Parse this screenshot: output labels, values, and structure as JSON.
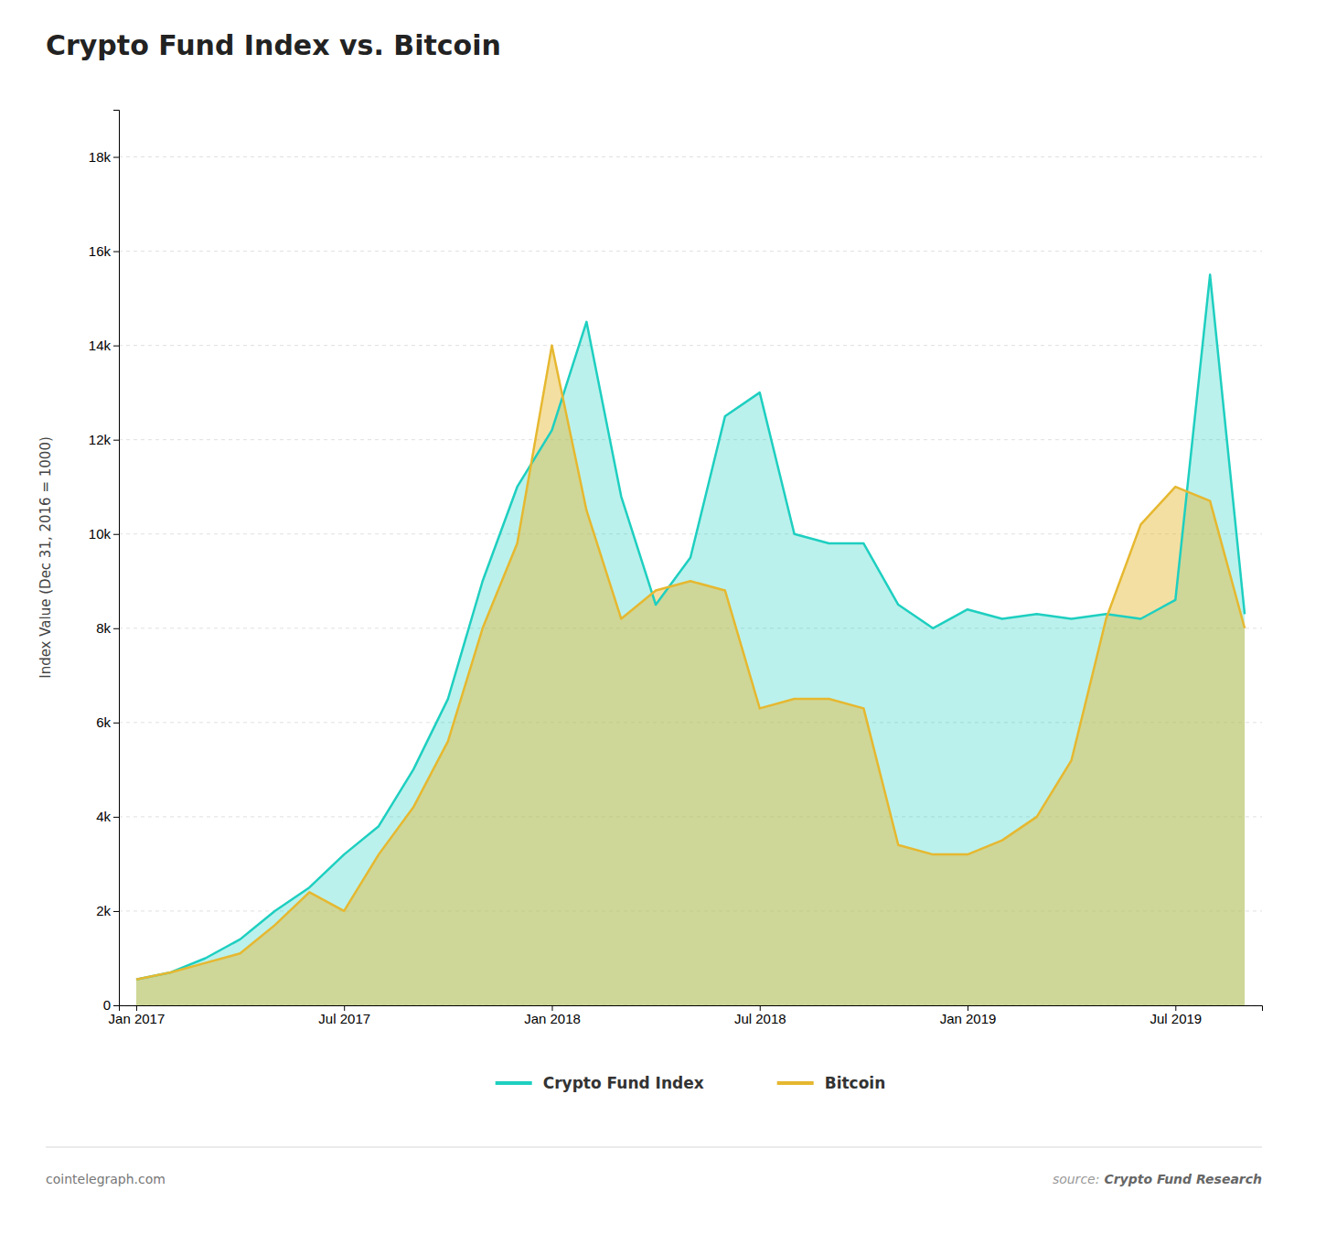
{
  "chart_data": {
    "type": "area",
    "title": "Crypto Fund Index vs. Bitcoin",
    "y_label": "Index Value (Dec 31, 2016 = 1000)",
    "categories": [
      "Jan 2017",
      null,
      null,
      null,
      null,
      null,
      "Jul 2017",
      null,
      null,
      null,
      null,
      null,
      "Jan 2018",
      null,
      null,
      null,
      null,
      null,
      "Jul 2018",
      null,
      null,
      null,
      null,
      null,
      "Jan 2019",
      null,
      null,
      null,
      null,
      null,
      "Jul 2019",
      null,
      null
    ],
    "series": [
      {
        "name": "Crypto Fund Index",
        "color": "#1ecfc0",
        "values": [
          550,
          700,
          1000,
          1400,
          2000,
          2500,
          3200,
          3800,
          5000,
          6500,
          9000,
          11000,
          12200,
          14500,
          10800,
          8500,
          9500,
          12500,
          13000,
          10000,
          9800,
          9800,
          8500,
          8000,
          8400,
          8200,
          8300,
          8200,
          8300,
          8200,
          8600,
          15500,
          8300
        ]
      },
      {
        "name": "Bitcoin",
        "color": "#e6b830",
        "values": [
          550,
          700,
          900,
          1100,
          1700,
          2400,
          2000,
          3200,
          4200,
          5600,
          8000,
          9800,
          14000,
          10500,
          8200,
          8800,
          9000,
          8800,
          6300,
          6500,
          6500,
          6300,
          3400,
          3200,
          3200,
          3500,
          4000,
          5200,
          8200,
          10200,
          11000,
          10700,
          8000
        ]
      }
    ],
    "ylim": [
      0,
      19000
    ],
    "yticks": [
      0,
      {
        "value": 2000,
        "label": "2k"
      },
      {
        "value": 4000,
        "label": "4k"
      },
      {
        "value": 6000,
        "label": "6k"
      },
      {
        "value": 8000,
        "label": "8k"
      },
      {
        "value": 10000,
        "label": "10k"
      },
      {
        "value": 12000,
        "label": "12k"
      },
      {
        "value": 14000,
        "label": "14k"
      },
      {
        "value": 16000,
        "label": "16k"
      },
      {
        "value": 18000,
        "label": "18k"
      }
    ],
    "grid": true,
    "legend": "bottom",
    "annotations": [
      "cointelegraph.com",
      "source:",
      "Crypto Fund Research"
    ]
  }
}
